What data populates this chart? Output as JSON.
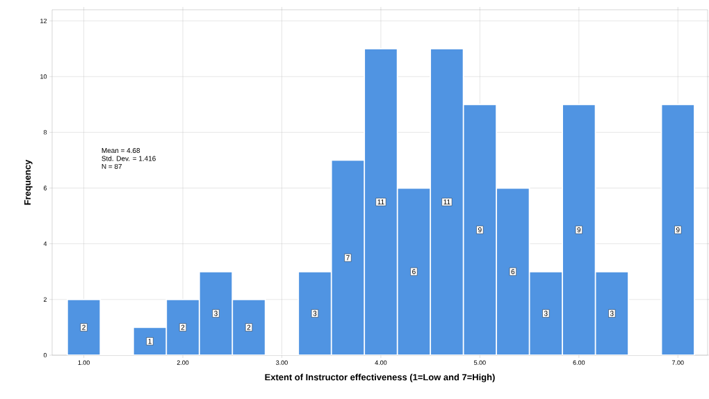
{
  "chart_data": {
    "type": "histogram",
    "xlabel": "Extent of Instructor effectiveness (1=Low and 7=High)",
    "ylabel": "Frequency",
    "bins": [
      0.8333,
      1.1667,
      1.5,
      1.8333,
      2.1667,
      2.5,
      2.8333,
      3.1667,
      3.5,
      3.8333,
      4.1667,
      4.5,
      4.8333,
      5.1667,
      5.5,
      5.8333,
      6.1667,
      6.5,
      6.8333,
      7.1667
    ],
    "values": [
      2,
      0,
      1,
      2,
      3,
      2,
      0,
      3,
      7,
      11,
      6,
      11,
      9,
      6,
      3,
      9,
      3,
      0,
      9
    ],
    "color": "#5094e2",
    "value_labels": [
      "2",
      null,
      "1",
      "2",
      "3",
      "2",
      null,
      "3",
      "7",
      "11",
      "6",
      "11",
      "9",
      "6",
      "3",
      "9",
      "3",
      null,
      "9"
    ],
    "annotations": [
      "Mean = 4.68",
      "Std. Dev. = 1.416",
      "N = 87"
    ],
    "xlim": [
      0.68,
      7.3
    ],
    "ylim": [
      0,
      12.4
    ],
    "xticks": [
      {
        "value": 1,
        "label": "1.00"
      },
      {
        "value": 2,
        "label": "2.00"
      },
      {
        "value": 3,
        "label": "3.00"
      },
      {
        "value": 4,
        "label": "4.00"
      },
      {
        "value": 5,
        "label": "5.00"
      },
      {
        "value": 6,
        "label": "6.00"
      },
      {
        "value": 7,
        "label": "7.00"
      }
    ],
    "yticks": [
      0,
      2,
      4,
      6,
      8,
      10,
      12
    ],
    "grid": true
  }
}
